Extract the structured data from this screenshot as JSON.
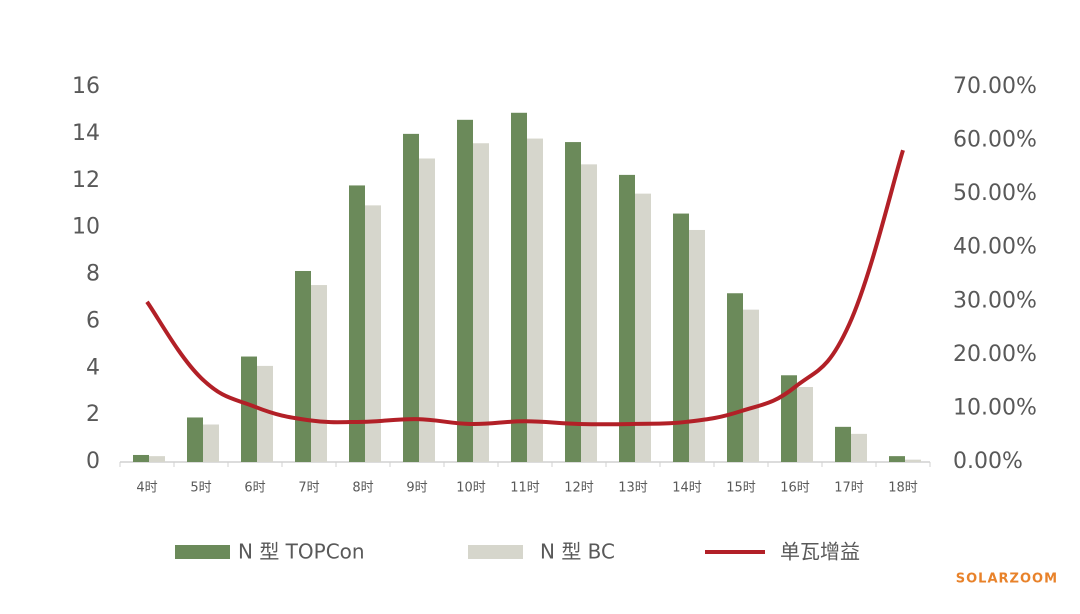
{
  "chart_data": {
    "type": "bar",
    "categories": [
      "4时",
      "5时",
      "6时",
      "7时",
      "8时",
      "9时",
      "10时",
      "11时",
      "12时",
      "13时",
      "14时",
      "15时",
      "16时",
      "17时",
      "18时"
    ],
    "series": [
      {
        "name": "N 型 TOPCon",
        "color": "#6b8a5a",
        "values": [
          0.3,
          1.9,
          4.5,
          8.15,
          11.8,
          14.0,
          14.6,
          14.9,
          13.65,
          12.25,
          10.6,
          7.2,
          3.7,
          1.5,
          0.25
        ]
      },
      {
        "name": "N 型 BC",
        "color": "#d6d6cc",
        "values": [
          0.25,
          1.6,
          4.1,
          7.55,
          10.95,
          12.95,
          13.6,
          13.8,
          12.7,
          11.45,
          9.9,
          6.5,
          3.2,
          1.2,
          0.1
        ]
      },
      {
        "name": "单瓦增益",
        "color": "#b22027",
        "type": "line",
        "axis": "y2",
        "values": [
          29.9,
          15.7,
          10.3,
          7.8,
          7.5,
          8.0,
          7.1,
          7.6,
          7.1,
          7.1,
          7.5,
          9.5,
          14.0,
          25.6,
          58.2
        ]
      }
    ],
    "ylim": [
      0,
      16
    ],
    "yticks": [
      0,
      2,
      4,
      6,
      8,
      10,
      12,
      14,
      16
    ],
    "y2lim": [
      0,
      70
    ],
    "y2ticks": [
      {
        "value": 0,
        "label": "0.00%"
      },
      {
        "value": 10,
        "label": "10.00%"
      },
      {
        "value": 20,
        "label": "20.00%"
      },
      {
        "value": 30,
        "label": "30.00%"
      },
      {
        "value": 40,
        "label": "40.00%"
      },
      {
        "value": 50,
        "label": "50.00%"
      },
      {
        "value": 60,
        "label": "60.00%"
      },
      {
        "value": 70,
        "label": "70.00%"
      }
    ],
    "legend": "bottom",
    "source": "SOLARZOOM"
  }
}
